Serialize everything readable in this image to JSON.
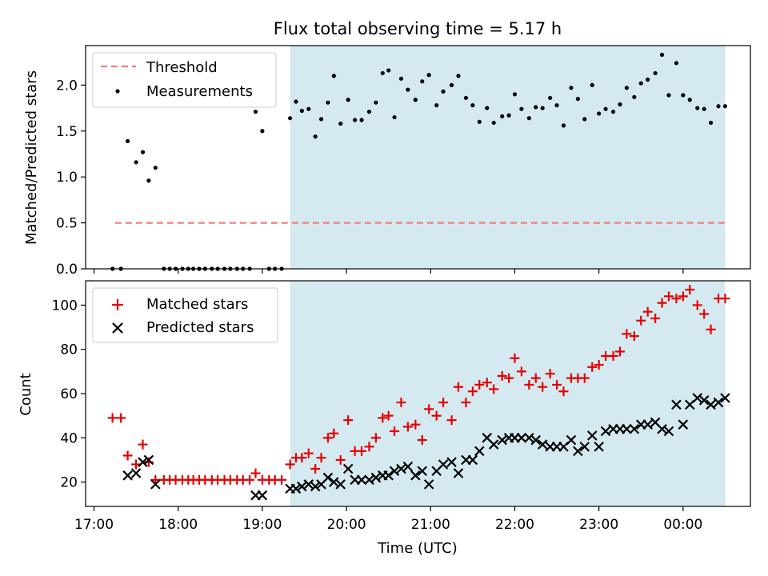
{
  "chart_data": [
    {
      "type": "scatter",
      "title": "Flux total observing time = 5.17 h",
      "xlabel": "",
      "ylabel": "Matched/Predicted stars",
      "ylim": [
        0,
        2.43
      ],
      "yticks": [
        0.0,
        0.5,
        1.0,
        1.5,
        2.0
      ],
      "ytick_labels": [
        "0.0",
        "0.5",
        "1.0",
        "1.5",
        "2.0"
      ],
      "xlim_hours": [
        16.9,
        24.8
      ],
      "xtick_hours": [
        17,
        18,
        19,
        20,
        21,
        22,
        23,
        24
      ],
      "shaded_span_hours": [
        19.33,
        24.5
      ],
      "shade_color": "#d4eaf0",
      "legend_position": "upper left",
      "legend": [
        "Threshold",
        "Measurements"
      ],
      "threshold": {
        "name": "Threshold",
        "value": 0.5,
        "x_hours": [
          17.25,
          24.5
        ],
        "color": "#f47c7c"
      },
      "measurements": {
        "name": "Measurements",
        "color": "#000000",
        "x_hours": [
          17.22,
          17.32,
          17.4,
          17.5,
          17.58,
          17.65,
          17.73,
          17.83,
          17.9,
          17.97,
          18.05,
          18.12,
          18.18,
          18.25,
          18.32,
          18.4,
          18.47,
          18.55,
          18.62,
          18.7,
          18.77,
          18.85,
          18.92,
          19.0,
          19.08,
          19.15,
          19.23,
          19.33,
          19.4,
          19.47,
          19.55,
          19.63,
          19.7,
          19.78,
          19.85,
          19.93,
          20.02,
          20.1,
          20.18,
          20.27,
          20.35,
          20.43,
          20.5,
          20.57,
          20.65,
          20.73,
          20.82,
          20.9,
          20.98,
          21.07,
          21.15,
          21.25,
          21.33,
          21.42,
          21.5,
          21.58,
          21.67,
          21.75,
          21.85,
          21.93,
          22.0,
          22.08,
          22.17,
          22.25,
          22.33,
          22.42,
          22.5,
          22.58,
          22.67,
          22.75,
          22.83,
          22.92,
          23.0,
          23.08,
          23.17,
          23.25,
          23.33,
          23.42,
          23.5,
          23.58,
          23.67,
          23.75,
          23.83,
          23.92,
          24.0,
          24.08,
          24.17,
          24.25,
          24.33,
          24.42,
          24.5
        ],
        "values": [
          0.0,
          0.0,
          1.39,
          1.16,
          1.27,
          0.96,
          1.1,
          0.0,
          0.0,
          0.0,
          0.0,
          0.0,
          0.0,
          0.0,
          0.0,
          0.0,
          0.0,
          0.0,
          0.0,
          0.0,
          0.0,
          0.0,
          1.71,
          1.5,
          0.0,
          0.0,
          0.0,
          1.64,
          1.82,
          1.72,
          1.74,
          1.44,
          1.63,
          1.81,
          2.1,
          1.58,
          1.84,
          1.62,
          1.62,
          1.71,
          1.81,
          2.13,
          2.16,
          1.65,
          2.07,
          1.95,
          1.84,
          2.04,
          2.11,
          1.78,
          1.93,
          2.0,
          2.1,
          1.86,
          1.78,
          1.6,
          1.75,
          1.59,
          1.66,
          1.67,
          1.9,
          1.74,
          1.64,
          1.76,
          1.75,
          1.86,
          1.78,
          1.56,
          1.97,
          1.85,
          1.63,
          2.0,
          1.69,
          1.74,
          1.71,
          1.79,
          1.97,
          1.87,
          2.02,
          2.06,
          2.13,
          2.33,
          1.89,
          2.24,
          1.89,
          1.84,
          1.75,
          1.74,
          1.59,
          1.77,
          1.77
        ]
      }
    },
    {
      "type": "scatter",
      "title": "",
      "xlabel": "Time (UTC)",
      "ylabel": "Count",
      "ylim": [
        9,
        111
      ],
      "yticks": [
        20,
        40,
        60,
        80,
        100
      ],
      "ytick_labels": [
        "20",
        "40",
        "60",
        "80",
        "100"
      ],
      "xlim_hours": [
        16.9,
        24.8
      ],
      "xtick_hours": [
        17,
        18,
        19,
        20,
        21,
        22,
        23,
        24
      ],
      "xtick_labels": [
        "17:00",
        "18:00",
        "19:00",
        "20:00",
        "21:00",
        "22:00",
        "23:00",
        "00:00"
      ],
      "shaded_span_hours": [
        19.33,
        24.5
      ],
      "shade_color": "#d4eaf0",
      "legend_position": "upper left",
      "legend": [
        "Matched stars",
        "Predicted stars"
      ],
      "series": [
        {
          "name": "Matched stars",
          "marker": "plus",
          "color": "#e60000",
          "x_hours": [
            17.22,
            17.32,
            17.4,
            17.5,
            17.58,
            17.65,
            17.73,
            17.83,
            17.9,
            17.97,
            18.05,
            18.12,
            18.18,
            18.25,
            18.32,
            18.4,
            18.47,
            18.55,
            18.62,
            18.7,
            18.77,
            18.85,
            18.92,
            19.0,
            19.08,
            19.15,
            19.23,
            19.33,
            19.4,
            19.47,
            19.55,
            19.63,
            19.7,
            19.78,
            19.85,
            19.93,
            20.02,
            20.1,
            20.18,
            20.27,
            20.35,
            20.43,
            20.5,
            20.57,
            20.65,
            20.73,
            20.82,
            20.9,
            20.98,
            21.07,
            21.15,
            21.25,
            21.33,
            21.42,
            21.5,
            21.58,
            21.67,
            21.75,
            21.85,
            21.93,
            22.0,
            22.08,
            22.17,
            22.25,
            22.33,
            22.42,
            22.5,
            22.58,
            22.67,
            22.75,
            22.83,
            22.92,
            23.0,
            23.08,
            23.17,
            23.25,
            23.33,
            23.42,
            23.5,
            23.58,
            23.67,
            23.75,
            23.83,
            23.92,
            24.0,
            24.08,
            24.17,
            24.25,
            24.33,
            24.42,
            24.5
          ],
          "values": [
            49,
            49,
            32,
            28,
            37,
            29,
            21,
            21,
            21,
            21,
            21,
            21,
            21,
            21,
            21,
            21,
            21,
            21,
            21,
            21,
            21,
            21,
            24,
            21,
            21,
            21,
            21,
            28,
            31,
            31,
            33,
            26,
            31,
            40,
            42,
            30,
            48,
            34,
            34,
            36,
            40,
            49,
            50,
            43,
            56,
            45,
            46,
            39,
            53,
            50,
            56,
            48,
            63,
            56,
            61,
            64,
            65,
            62,
            68,
            67,
            76,
            70,
            64,
            67,
            63,
            69,
            64,
            61,
            67,
            67,
            67,
            72,
            73,
            77,
            77,
            79,
            87,
            86,
            93,
            97,
            94,
            101,
            104,
            103,
            104,
            107,
            100,
            96,
            89,
            103,
            103
          ]
        },
        {
          "name": "Predicted stars",
          "marker": "x",
          "color": "#000000",
          "x_hours": [
            17.4,
            17.5,
            17.58,
            17.65,
            17.73,
            18.92,
            19.0,
            19.33,
            19.4,
            19.47,
            19.55,
            19.63,
            19.7,
            19.78,
            19.85,
            19.93,
            20.02,
            20.1,
            20.18,
            20.27,
            20.35,
            20.43,
            20.5,
            20.57,
            20.65,
            20.73,
            20.82,
            20.9,
            20.98,
            21.07,
            21.15,
            21.25,
            21.33,
            21.42,
            21.5,
            21.58,
            21.67,
            21.75,
            21.85,
            21.93,
            22.0,
            22.08,
            22.17,
            22.25,
            22.33,
            22.42,
            22.5,
            22.58,
            22.67,
            22.75,
            22.83,
            22.92,
            23.0,
            23.08,
            23.17,
            23.25,
            23.33,
            23.42,
            23.5,
            23.58,
            23.67,
            23.75,
            23.83,
            23.92,
            24.0,
            24.08,
            24.17,
            24.25,
            24.33,
            24.42,
            24.5
          ],
          "values": [
            23,
            24,
            29,
            30,
            19,
            14,
            14,
            17,
            17,
            18,
            19,
            18,
            19,
            22,
            20,
            19,
            26,
            21,
            21,
            21,
            22,
            23,
            23,
            25,
            26,
            27,
            23,
            25,
            19,
            25,
            28,
            29,
            24,
            30,
            30,
            34,
            40,
            37,
            39,
            40,
            40,
            40,
            40,
            39,
            37,
            36,
            36,
            36,
            39,
            34,
            36,
            41,
            36,
            43,
            44,
            44,
            44,
            44,
            46,
            46,
            47,
            44,
            43,
            55,
            46,
            55,
            58,
            57,
            55,
            56,
            58
          ]
        }
      ]
    }
  ]
}
